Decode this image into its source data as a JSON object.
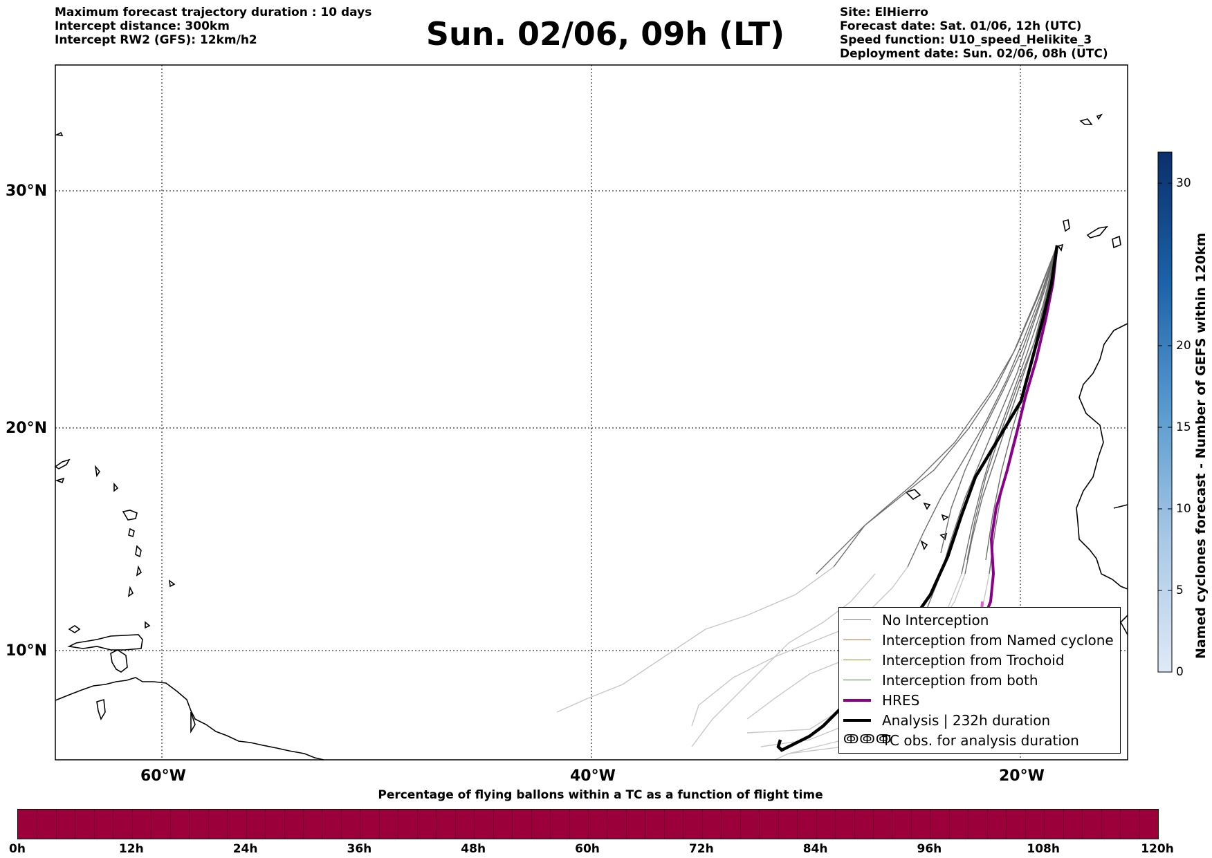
{
  "header": {
    "left": [
      "Maximum forecast trajectory duration : 10 days",
      "Intercept distance: 300km",
      "Intercept RW2 (GFS):  12km/h2"
    ],
    "title": "Sun. 02/06, 09h (LT)",
    "right": [
      "Site: ElHierro",
      "Forecast date: Sat. 01/06, 12h (UTC)",
      "Speed function: U10_speed_Helikite_3",
      "Deployment date: Sun. 02/06, 08h (UTC)"
    ]
  },
  "map": {
    "lat_labels": [
      "30°N",
      "20°N",
      "10°N"
    ],
    "lon_labels": [
      "60°W",
      "40°W",
      "20°W"
    ],
    "grid": "dotted"
  },
  "legend": {
    "items": [
      {
        "label": "No Interception",
        "color": "#777777",
        "style": "thin"
      },
      {
        "label": "Interception from Named cyclone",
        "color": "#e8602c",
        "style": "thin"
      },
      {
        "label": "Interception from Trochoid",
        "color": "#8a8a2a",
        "style": "thin"
      },
      {
        "label": "Interception from both",
        "color": "#3a8a3a",
        "style": "thin"
      },
      {
        "label": "HRES",
        "color": "#8b008b",
        "style": "thick"
      },
      {
        "label": "Analysis | 232h duration",
        "color": "#000000",
        "style": "thick"
      },
      {
        "label": "TC obs. for analysis duration",
        "color": "#000000",
        "style": "symbol"
      }
    ]
  },
  "colorbar": {
    "title": "Named cyclones forecast - Number of GEFS within 120km",
    "ticks": [
      "30",
      "20",
      "15",
      "10",
      "5",
      "0"
    ]
  },
  "percentage_bar": {
    "title": "Percentage of flying ballons within a TC as a function of flight time",
    "color": "#9b003a",
    "ticks": [
      "0h",
      "12h",
      "24h",
      "36h",
      "48h",
      "60h",
      "72h",
      "84h",
      "96h",
      "108h",
      "120h"
    ]
  }
}
